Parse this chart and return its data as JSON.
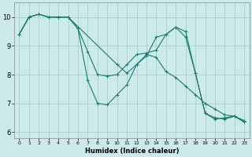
{
  "xlabel": "Humidex (Indice chaleur)",
  "background_color": "#cdeaea",
  "grid_color": "#aacece",
  "line_color": "#1a7a6e",
  "xlim": [
    -0.5,
    23.5
  ],
  "ylim": [
    5.8,
    10.5
  ],
  "yticks": [
    6,
    7,
    8,
    9,
    10
  ],
  "xticks": [
    0,
    1,
    2,
    3,
    4,
    5,
    6,
    7,
    8,
    9,
    10,
    11,
    12,
    13,
    14,
    15,
    16,
    17,
    18,
    19,
    20,
    21,
    22,
    23
  ],
  "series": [
    {
      "x": [
        0,
        1,
        2,
        3,
        4,
        5,
        10,
        11,
        12,
        13,
        14,
        15,
        16,
        17,
        18,
        19,
        20,
        21,
        22,
        23
      ],
      "y": [
        9.4,
        10.0,
        10.1,
        10.0,
        10.0,
        10.0,
        8.35,
        8.05,
        8.35,
        8.7,
        8.6,
        8.1,
        7.9,
        7.6,
        7.3,
        7.0,
        6.8,
        6.6,
        6.55,
        6.4
      ]
    },
    {
      "x": [
        0,
        1,
        2,
        3,
        4,
        5,
        6,
        7,
        8,
        9,
        10,
        11,
        12,
        13,
        14,
        15,
        16,
        17,
        18,
        19,
        20,
        21,
        22,
        23
      ],
      "y": [
        9.4,
        10.0,
        10.1,
        10.0,
        10.0,
        10.0,
        9.6,
        8.8,
        8.0,
        7.95,
        8.0,
        8.35,
        8.7,
        8.75,
        8.85,
        9.4,
        9.65,
        9.5,
        8.05,
        6.65,
        6.5,
        6.45,
        6.55,
        6.35
      ]
    },
    {
      "x": [
        0,
        1,
        2,
        3,
        4,
        5,
        6,
        7,
        8,
        9,
        10,
        11,
        12,
        13,
        14,
        15,
        16,
        17,
        18,
        19,
        20,
        21,
        22,
        23
      ],
      "y": [
        9.4,
        10.0,
        10.1,
        10.0,
        10.0,
        10.0,
        9.6,
        7.8,
        7.0,
        6.95,
        7.3,
        7.65,
        8.35,
        8.65,
        9.3,
        9.4,
        9.65,
        9.3,
        8.05,
        6.65,
        6.45,
        6.5,
        6.55,
        6.35
      ]
    }
  ]
}
